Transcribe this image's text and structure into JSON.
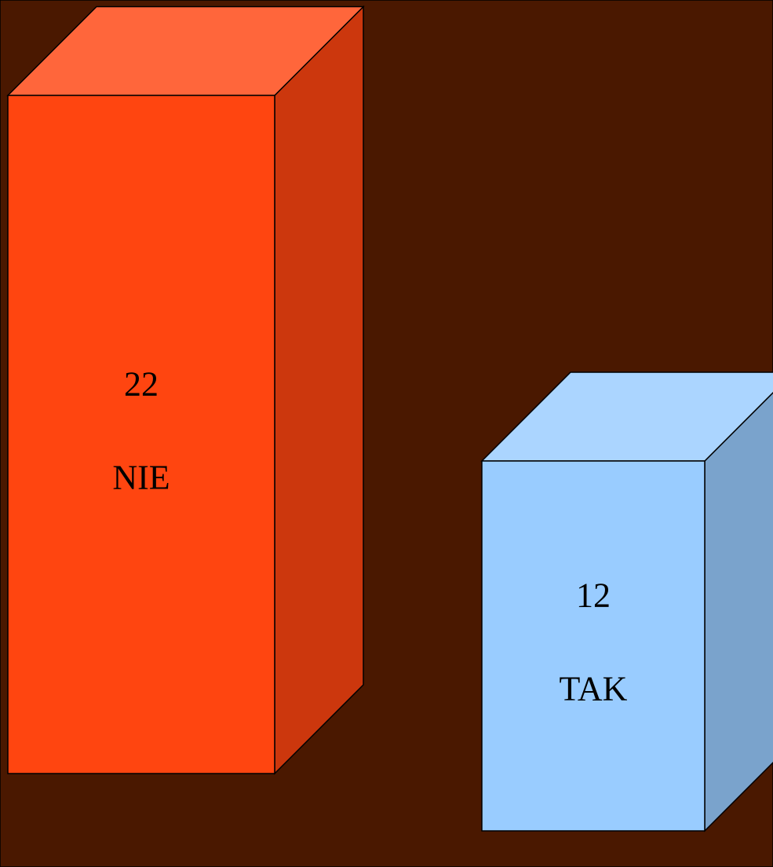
{
  "chart_data": {
    "type": "bar3d",
    "categories": [
      "NIE",
      "TAK"
    ],
    "values": [
      22,
      12
    ],
    "colors": [
      "#ff4510",
      "#99ccff"
    ]
  }
}
